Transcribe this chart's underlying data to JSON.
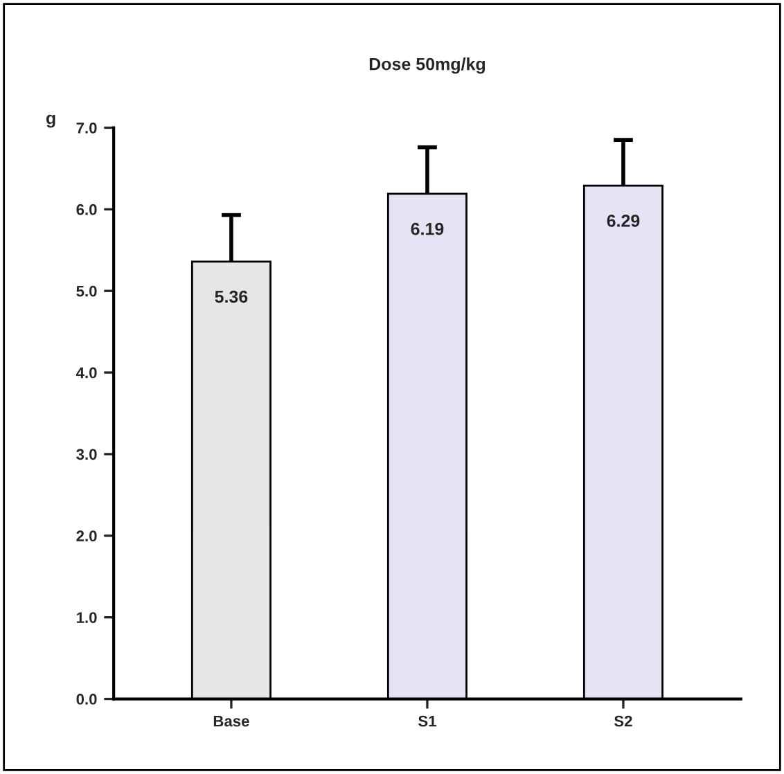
{
  "chart_data": {
    "type": "bar",
    "title": "Dose 50mg/kg",
    "ylabel": "g",
    "categories": [
      "Base",
      "S1",
      "S2"
    ],
    "values": [
      5.36,
      6.19,
      6.29
    ],
    "errors": [
      0.57,
      0.57,
      0.56
    ],
    "colors": [
      "#e6e6e6",
      "#e4e4f4",
      "#e4e4f4"
    ],
    "ylim": [
      0,
      7
    ],
    "yticks": [
      {
        "value": 0,
        "label": "0.0"
      },
      {
        "value": 1,
        "label": "1.0"
      },
      {
        "value": 2,
        "label": "2.0"
      },
      {
        "value": 3,
        "label": "3.0"
      },
      {
        "value": 4,
        "label": "4.0"
      },
      {
        "value": 5,
        "label": "5.0"
      },
      {
        "value": 6,
        "label": "6.0"
      },
      {
        "value": 7,
        "label": "7.0"
      }
    ],
    "data_labels": true,
    "grid": false,
    "legend": false
  }
}
